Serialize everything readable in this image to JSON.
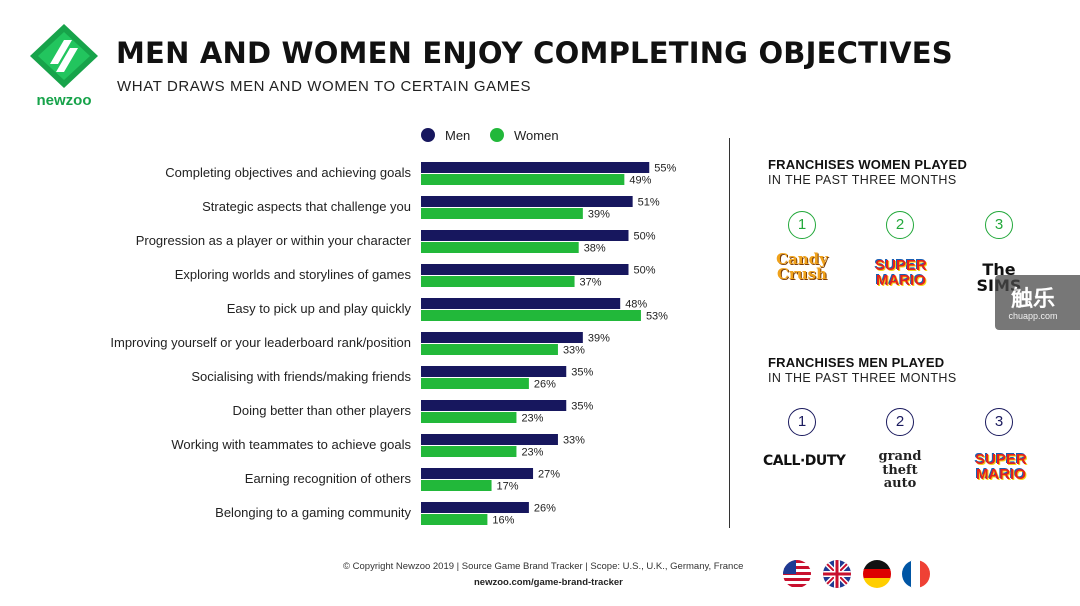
{
  "logo": {
    "name": "newzoo"
  },
  "header": {
    "title": "MEN AND WOMEN ENJOY COMPLETING OBJECTIVES",
    "subtitle": "WHAT DRAWS MEN AND WOMEN TO CERTAIN GAMES"
  },
  "colors": {
    "men": "#17175e",
    "women": "#22b83a",
    "brand_green": "#17a34a"
  },
  "chart_data": {
    "type": "bar",
    "orientation": "horizontal",
    "categories": [
      "Completing objectives and achieving goals",
      "Strategic aspects that challenge you",
      "Progression as a player or within your character",
      "Exploring worlds and storylines of games",
      "Easy to pick up and play quickly",
      "Improving yourself or your leaderboard rank/position",
      "Socialising with friends/making friends",
      "Doing better than other players",
      "Working with teammates to achieve goals",
      "Earning recognition of others",
      "Belonging to a gaming community"
    ],
    "series": [
      {
        "name": "Men",
        "values": [
          55,
          51,
          50,
          50,
          48,
          39,
          35,
          35,
          33,
          27,
          26
        ]
      },
      {
        "name": "Women",
        "values": [
          49,
          39,
          38,
          37,
          53,
          33,
          26,
          23,
          23,
          17,
          16
        ]
      }
    ],
    "value_suffix": "%",
    "xlim": [
      0,
      60
    ],
    "legend": "top",
    "grid": false
  },
  "women_panel": {
    "title": "FRANCHISES WOMEN PLAYED",
    "subtitle": "IN THE PAST THREE MONTHS",
    "items": [
      {
        "rank": "1",
        "brand": "Candy Crush",
        "icon": "candy-crush-logo"
      },
      {
        "rank": "2",
        "brand": "SUPER MARIO",
        "icon": "super-mario-logo"
      },
      {
        "rank": "3",
        "brand": "The SIMS",
        "icon": "the-sims-logo"
      }
    ]
  },
  "men_panel": {
    "title": "FRANCHISES MEN PLAYED",
    "subtitle": "IN THE PAST THREE MONTHS",
    "items": [
      {
        "rank": "1",
        "brand": "CALL·DUTY",
        "icon": "call-of-duty-logo"
      },
      {
        "rank": "2",
        "brand": "grand theft auto",
        "icon": "gta-logo"
      },
      {
        "rank": "3",
        "brand": "SUPER MARIO",
        "icon": "super-mario-logo"
      }
    ]
  },
  "footer": {
    "note": "© Copyright Newzoo 2019 | Source Game Brand Tracker | Scope: U.S., U.K., Germany, France",
    "link": "newzoo.com/game-brand-tracker",
    "flags": [
      "us-flag",
      "uk-flag",
      "germany-flag",
      "france-flag"
    ]
  },
  "watermark": {
    "main": "触乐",
    "sub": "chuapp.com"
  }
}
